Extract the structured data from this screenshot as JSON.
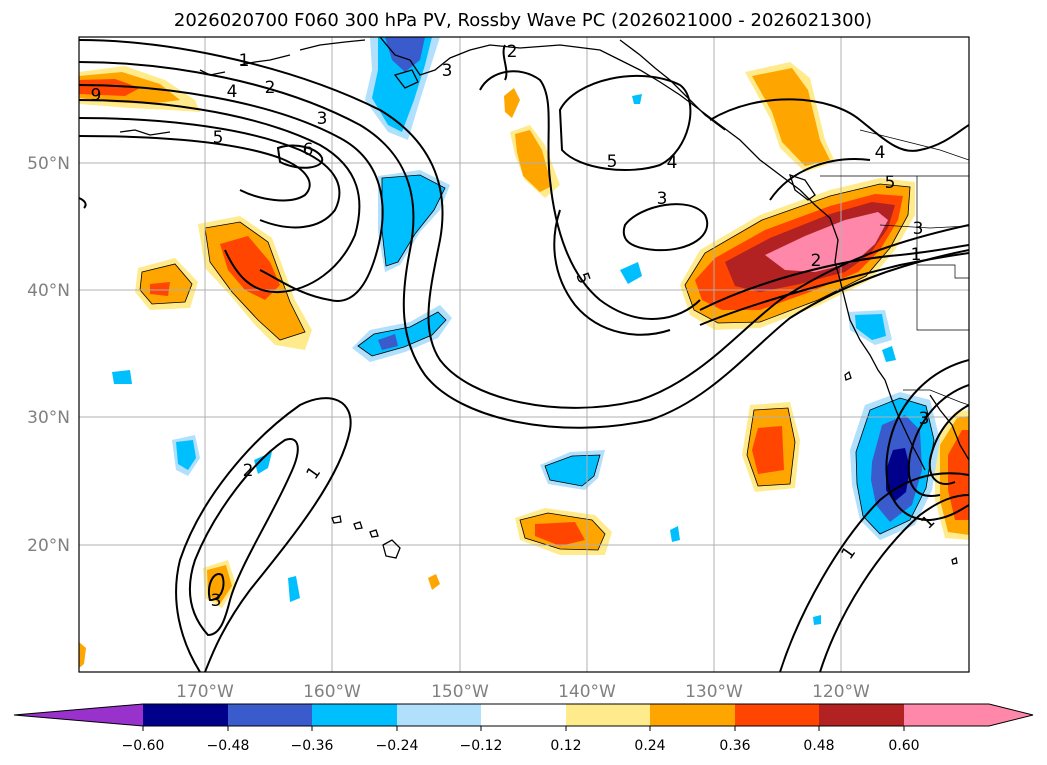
{
  "title": "2026020700 F060 300 hPa PV, Rossby Wave PC (2026021000 - 2026021300)",
  "map": {
    "latitude_labels": [
      "50°N",
      "40°N",
      "30°N",
      "20°N"
    ],
    "longitude_labels": [
      "170°W",
      "160°W",
      "150°W",
      "140°W",
      "130°W",
      "120°W"
    ],
    "contour_labels": [
      "1",
      "2",
      "4",
      "3",
      "5",
      "6",
      "6",
      "3",
      "2",
      "5",
      "4",
      "3",
      "5",
      "4",
      "5",
      "3",
      "2",
      "1",
      "2",
      "1",
      "3",
      "1",
      "3",
      "1"
    ]
  },
  "colorbar": {
    "ticks": [
      "−0.60",
      "−0.48",
      "−0.36",
      "−0.24",
      "−0.12",
      "0.12",
      "0.24",
      "0.36",
      "0.48",
      "0.60"
    ],
    "colors": [
      "#9932cc",
      "#00008b",
      "#3a5bcc",
      "#00bfff",
      "#b0e0fb",
      "#ffffff",
      "#ffeb8c",
      "#ffa500",
      "#ff4500",
      "#b22222",
      "#ff88aa",
      "#ff88aa"
    ]
  },
  "colors": {
    "land_outline": "#000000",
    "grid": "#b0b0b0",
    "contour": "#000000"
  }
}
